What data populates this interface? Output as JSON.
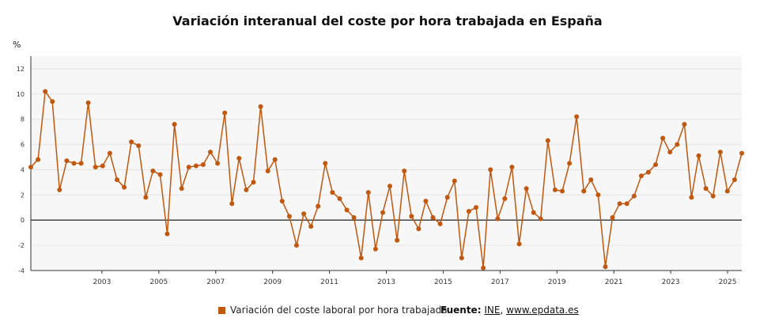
{
  "title": "Variación interanual del coste por hora trabajada en España",
  "unit_label": "%",
  "legend_label": "Variación del coste laboral por hora trabajada",
  "source": {
    "prefix": "Fuente:",
    "link1": "INE",
    "sep": ",",
    "link2": "www.epdata.es"
  },
  "colors": {
    "series": "#c0580f",
    "plot_bg": "#f7f7f7",
    "grid": "#e3e3e3",
    "zero": "#222222",
    "axis": "#333333"
  },
  "chart_data": {
    "type": "line",
    "title": "Variación interanual del coste por hora trabajada en España",
    "ylabel": "%",
    "xlabel": "",
    "ylim": [
      -4,
      13
    ],
    "yticks": [
      -4,
      -2,
      0,
      2,
      4,
      6,
      8,
      10,
      12
    ],
    "xlim": [
      2001.0,
      2026.0
    ],
    "xticks": [
      "2003",
      "2005",
      "2007",
      "2009",
      "2011",
      "2013",
      "2015",
      "2017",
      "2019",
      "2021",
      "2023",
      "2025"
    ],
    "grid": true,
    "legend_position": "bottom",
    "series": [
      {
        "name": "Variación del coste laboral por hora trabajada",
        "values": [
          4.2,
          4.8,
          10.2,
          9.4,
          2.4,
          4.7,
          4.5,
          4.5,
          9.3,
          4.2,
          4.3,
          5.3,
          3.2,
          2.6,
          6.2,
          5.9,
          1.8,
          3.9,
          3.6,
          -1.1,
          7.6,
          2.5,
          4.2,
          4.3,
          4.4,
          5.4,
          4.5,
          8.5,
          1.3,
          4.9,
          2.4,
          3.0,
          9.0,
          3.9,
          4.8,
          1.5,
          0.3,
          -2.0,
          0.5,
          -0.5,
          1.1,
          4.5,
          2.2,
          1.7,
          0.8,
          0.2,
          -3.0,
          2.2,
          -2.3,
          0.6,
          2.7,
          -1.6,
          3.9,
          0.3,
          -0.7,
          1.5,
          0.2,
          -0.3,
          1.8,
          3.1,
          -3.0,
          0.7,
          1.0,
          -3.8,
          4.0,
          0.1,
          1.7,
          4.2,
          -1.9,
          2.5,
          0.6,
          0.1,
          6.3,
          2.4,
          2.3,
          4.5,
          8.2,
          2.3,
          3.2,
          2.0,
          -3.7,
          0.2,
          1.3,
          1.3,
          1.9,
          3.5,
          3.8,
          4.4,
          6.5,
          5.4,
          6.0,
          7.6,
          1.8,
          5.1,
          2.5,
          1.9,
          5.4,
          2.3,
          3.2,
          5.3
        ]
      }
    ]
  }
}
